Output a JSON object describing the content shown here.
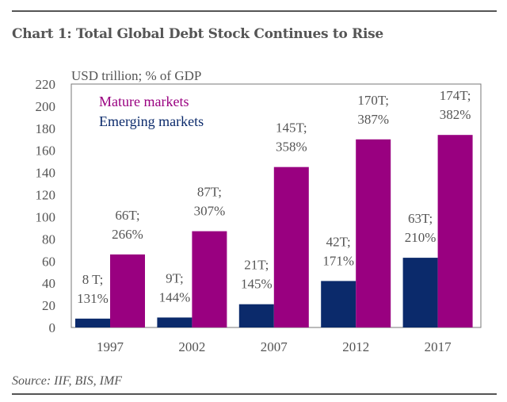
{
  "title": "Chart 1: Total Global Debt Stock Continues to Rise",
  "source": "Source: IIF, BIS, IMF",
  "chart_data": {
    "type": "bar",
    "ylabel": "USD trillion; % of GDP",
    "ylim": [
      0,
      220
    ],
    "yticks": [
      0,
      20,
      40,
      60,
      80,
      100,
      120,
      140,
      160,
      180,
      200,
      220
    ],
    "categories": [
      "1997",
      "2002",
      "2007",
      "2012",
      "2017"
    ],
    "legend_position": "top-left",
    "grid": false,
    "series": [
      {
        "name": "Emerging markets",
        "color": "#0b2a6b",
        "values": [
          8,
          9,
          21,
          42,
          63
        ],
        "labels": [
          [
            "8 T;",
            "131%"
          ],
          [
            "9T;",
            "144%"
          ],
          [
            "21T;",
            "145%"
          ],
          [
            "42T;",
            "171%"
          ],
          [
            "63T;",
            "210%"
          ]
        ]
      },
      {
        "name": "Mature markets",
        "color": "#990080",
        "values": [
          66,
          87,
          145,
          170,
          174
        ],
        "labels": [
          [
            "66T;",
            "266%"
          ],
          [
            "87T;",
            "307%"
          ],
          [
            "145T;",
            "358%"
          ],
          [
            "170T;",
            "387%"
          ],
          [
            "174T;",
            "382%"
          ]
        ]
      }
    ]
  }
}
